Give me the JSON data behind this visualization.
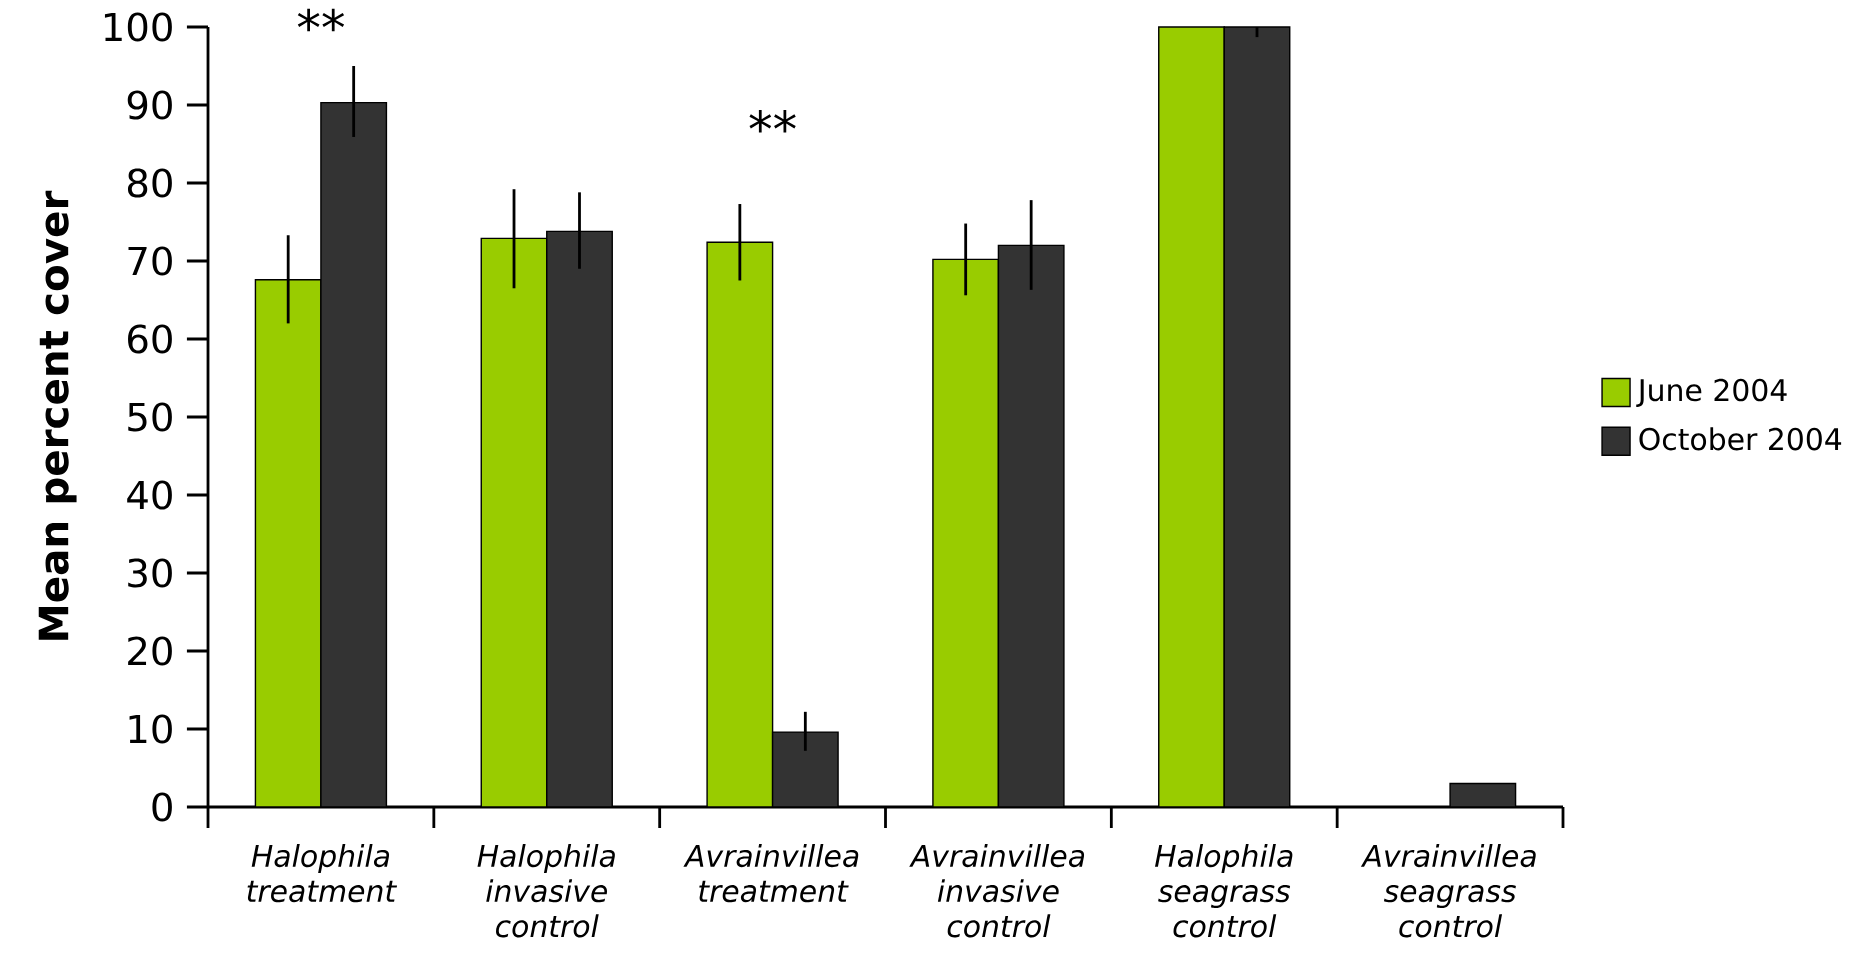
{
  "chart_data": {
    "type": "bar",
    "ylabel": "Mean percent cover",
    "categories": [
      "*Halophila* treatment",
      "*Halophila* invasive control",
      "*Avrainvillea* treatment",
      "*Avrainvillea* invasive control",
      "*Halophila* seagrass control",
      "*Avrainvillea* seagrass control"
    ],
    "series": [
      {
        "name": "June 2004",
        "color": "#99cc00",
        "values": [
          67.6,
          72.9,
          72.4,
          70.2,
          100,
          null
        ],
        "errors": [
          [
            62.0,
            73.3
          ],
          [
            66.5,
            79.2
          ],
          [
            67.5,
            77.3
          ],
          [
            65.6,
            74.8
          ],
          null,
          null
        ]
      },
      {
        "name": "October 2004",
        "color": "#333333",
        "values": [
          90.3,
          73.8,
          9.6,
          72.0,
          100,
          3
        ],
        "errors": [
          [
            85.9,
            95.0
          ],
          [
            69.0,
            78.8
          ],
          [
            7.2,
            12.2
          ],
          [
            66.3,
            77.8
          ],
          [
            98.7,
            100
          ],
          null
        ]
      }
    ],
    "ylim": [
      0,
      100
    ],
    "yticks": [
      0,
      10,
      20,
      30,
      40,
      50,
      60,
      70,
      80,
      90,
      100
    ],
    "legend": "right",
    "grid": false,
    "annotations": [
      "**",
      "**"
    ]
  }
}
